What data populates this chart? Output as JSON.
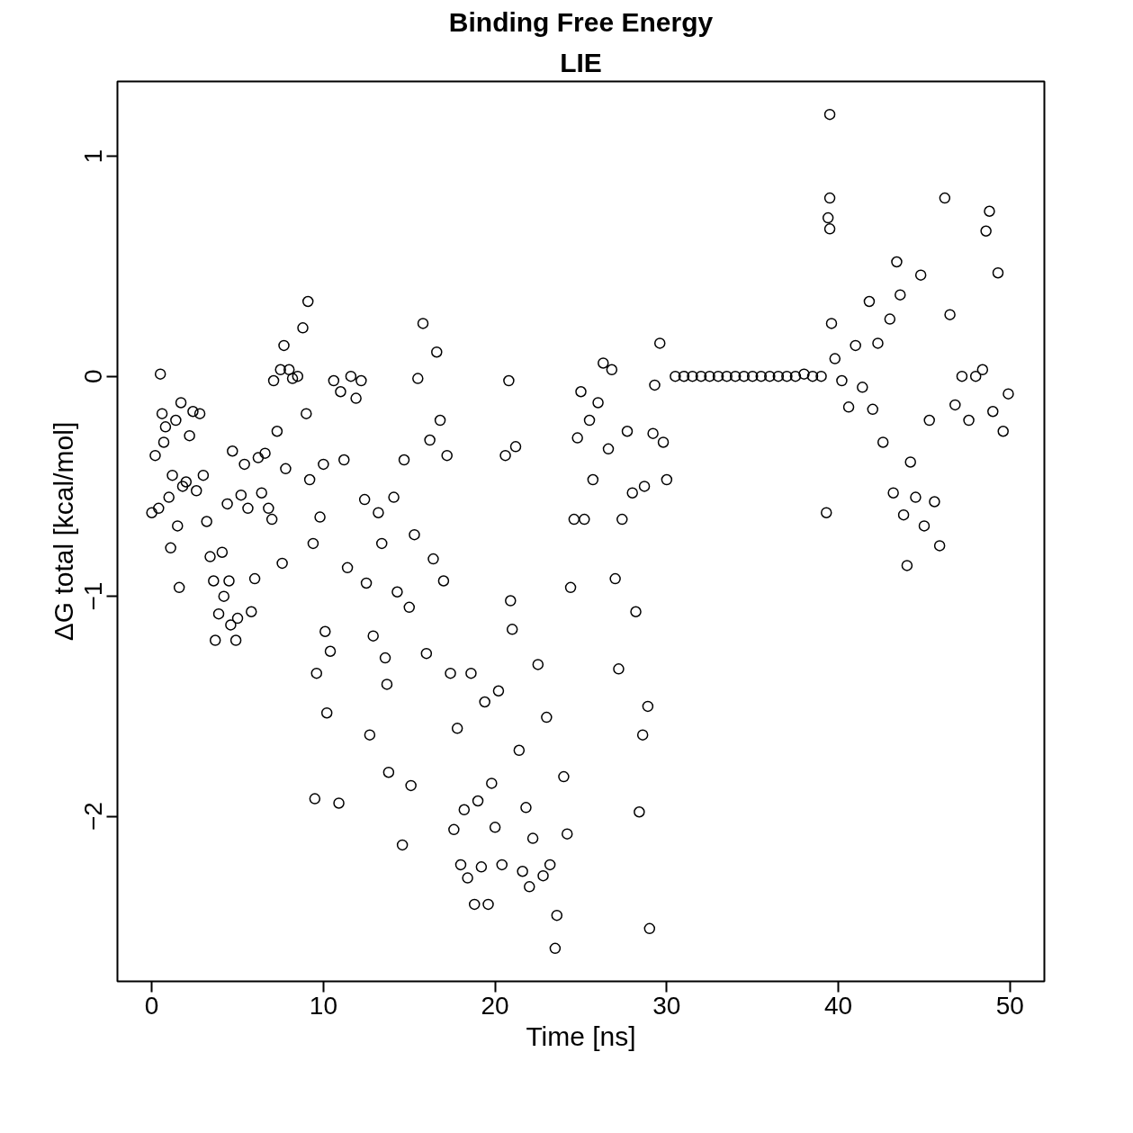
{
  "chart_data": {
    "type": "scatter",
    "title": "Binding Free Energy",
    "subtitle": "LIE",
    "xlabel": "Time [ns]",
    "ylabel": "ΔG total [kcal/mol]",
    "xlim": [
      -2,
      52
    ],
    "ylim": [
      -2.75,
      1.34
    ],
    "xticks": [
      0,
      10,
      20,
      30,
      40,
      50
    ],
    "yticks": [
      -2,
      -1,
      0,
      1
    ],
    "grid": false,
    "marker": "circle",
    "series": [
      {
        "color": "#000000",
        "x": [
          0,
          0.2,
          0.4,
          0.5,
          0.6,
          0.7,
          0.8,
          1,
          1.1,
          1.2,
          1.4,
          1.5,
          1.6,
          1.7,
          1.8,
          2,
          2.2,
          2.4,
          2.6,
          2.8,
          3,
          3.2,
          3.4,
          3.6,
          3.7,
          3.9,
          4.1,
          4.2,
          4.4,
          4.5,
          4.6,
          4.7,
          4.9,
          5,
          5.2,
          5.4,
          5.6,
          5.8,
          6,
          6.2,
          6.4,
          6.6,
          6.8,
          7,
          7.1,
          7.3,
          7.5,
          7.6,
          7.7,
          7.8,
          8,
          8.2,
          8.5,
          8.8,
          9,
          9.1,
          9.2,
          9.4,
          9.5,
          9.6,
          9.8,
          10,
          10.1,
          10.2,
          10.4,
          10.6,
          10.9,
          11,
          11.2,
          11.4,
          11.6,
          11.9,
          12.2,
          12.4,
          12.5,
          12.7,
          12.9,
          13.2,
          13.4,
          13.6,
          13.7,
          13.8,
          14.1,
          14.3,
          14.6,
          14.7,
          15,
          15.1,
          15.3,
          15.5,
          15.8,
          16,
          16.2,
          16.4,
          16.6,
          16.8,
          17,
          17.2,
          17.4,
          17.6,
          17.8,
          18,
          18.2,
          18.4,
          18.6,
          18.8,
          19,
          19.2,
          19.4,
          19.6,
          19.8,
          20,
          20.2,
          20.4,
          20.6,
          20.8,
          20.9,
          21,
          21.2,
          21.4,
          21.6,
          21.8,
          22,
          22.2,
          22.5,
          22.8,
          23,
          23.2,
          23.5,
          23.6,
          24,
          24.2,
          24.4,
          24.6,
          24.8,
          25,
          25.2,
          25.5,
          25.7,
          26,
          26.3,
          26.6,
          26.8,
          27,
          27.2,
          27.4,
          27.7,
          28,
          28.2,
          28.4,
          28.6,
          28.7,
          28.9,
          29,
          29.2,
          29.3,
          29.6,
          29.8,
          30,
          30.5,
          31,
          31.5,
          32,
          32.5,
          33,
          33.5,
          34,
          34.5,
          35,
          35.5,
          36,
          36.5,
          37,
          37.5,
          38,
          38.5,
          39,
          39.3,
          39.4,
          39.5,
          39.5,
          39.5,
          39.6,
          39.8,
          40.2,
          40.6,
          41,
          41.4,
          41.8,
          42,
          42.3,
          42.6,
          43,
          43.2,
          43.4,
          43.6,
          43.8,
          44,
          44.2,
          44.5,
          44.8,
          45,
          45.3,
          45.6,
          45.9,
          46.2,
          46.5,
          46.8,
          47.2,
          47.6,
          48,
          48.4,
          48.6,
          48.8,
          49,
          49.3,
          49.6,
          49.9
        ],
        "values": [
          -0.62,
          -0.36,
          -0.6,
          0.01,
          -0.17,
          -0.3,
          -0.23,
          -0.55,
          -0.78,
          -0.45,
          -0.2,
          -0.68,
          -0.96,
          -0.12,
          -0.5,
          -0.48,
          -0.27,
          -0.16,
          -0.52,
          -0.17,
          -0.45,
          -0.66,
          -0.82,
          -0.93,
          -1.2,
          -1.08,
          -0.8,
          -1.0,
          -0.58,
          -0.93,
          -1.13,
          -0.34,
          -1.2,
          -1.1,
          -0.54,
          -0.4,
          -0.6,
          -1.07,
          -0.92,
          -0.37,
          -0.53,
          -0.35,
          -0.6,
          -0.65,
          -0.02,
          -0.25,
          0.03,
          -0.85,
          0.14,
          -0.42,
          0.03,
          -0.01,
          0.0,
          0.22,
          -0.17,
          0.34,
          -0.47,
          -0.76,
          -1.92,
          -1.35,
          -0.64,
          -0.4,
          -1.16,
          -1.53,
          -1.25,
          -0.02,
          -1.94,
          -0.07,
          -0.38,
          -0.87,
          0.0,
          -0.1,
          -0.02,
          -0.56,
          -0.94,
          -1.63,
          -1.18,
          -0.62,
          -0.76,
          -1.28,
          -1.4,
          -1.8,
          -0.55,
          -0.98,
          -2.13,
          -0.38,
          -1.05,
          -1.86,
          -0.72,
          -0.01,
          0.24,
          -1.26,
          -0.29,
          -0.83,
          0.11,
          -0.2,
          -0.93,
          -0.36,
          -1.35,
          -2.06,
          -1.6,
          -2.22,
          -1.97,
          -2.28,
          -1.35,
          -2.4,
          -1.93,
          -2.23,
          -1.48,
          -2.4,
          -1.85,
          -2.05,
          -1.43,
          -2.22,
          -0.36,
          -0.02,
          -1.02,
          -1.15,
          -0.32,
          -1.7,
          -2.25,
          -1.96,
          -2.32,
          -2.1,
          -1.31,
          -2.27,
          -1.55,
          -2.22,
          -2.6,
          -2.45,
          -1.82,
          -2.08,
          -0.96,
          -0.65,
          -0.28,
          -0.07,
          -0.65,
          -0.2,
          -0.47,
          -0.12,
          0.06,
          -0.33,
          0.03,
          -0.92,
          -1.33,
          -0.65,
          -0.25,
          -0.53,
          -1.07,
          -1.98,
          -1.63,
          -0.5,
          -1.5,
          -2.51,
          -0.26,
          -0.04,
          0.15,
          -0.3,
          -0.47,
          0,
          0,
          0,
          0,
          0,
          0,
          0,
          0,
          0,
          0,
          0,
          0,
          0,
          0,
          0,
          0.01,
          0,
          0,
          -0.62,
          0.72,
          1.19,
          0.81,
          0.67,
          0.24,
          0.08,
          -0.02,
          -0.14,
          0.14,
          -0.05,
          0.34,
          -0.15,
          0.15,
          -0.3,
          0.26,
          -0.53,
          0.52,
          0.37,
          -0.63,
          -0.86,
          -0.39,
          -0.55,
          0.46,
          -0.68,
          -0.2,
          -0.57,
          -0.77,
          0.81,
          0.28,
          -0.13,
          0.0,
          -0.2,
          0.0,
          0.03,
          0.66,
          0.75,
          -0.16,
          0.47,
          -0.25,
          -0.08
        ]
      }
    ]
  }
}
